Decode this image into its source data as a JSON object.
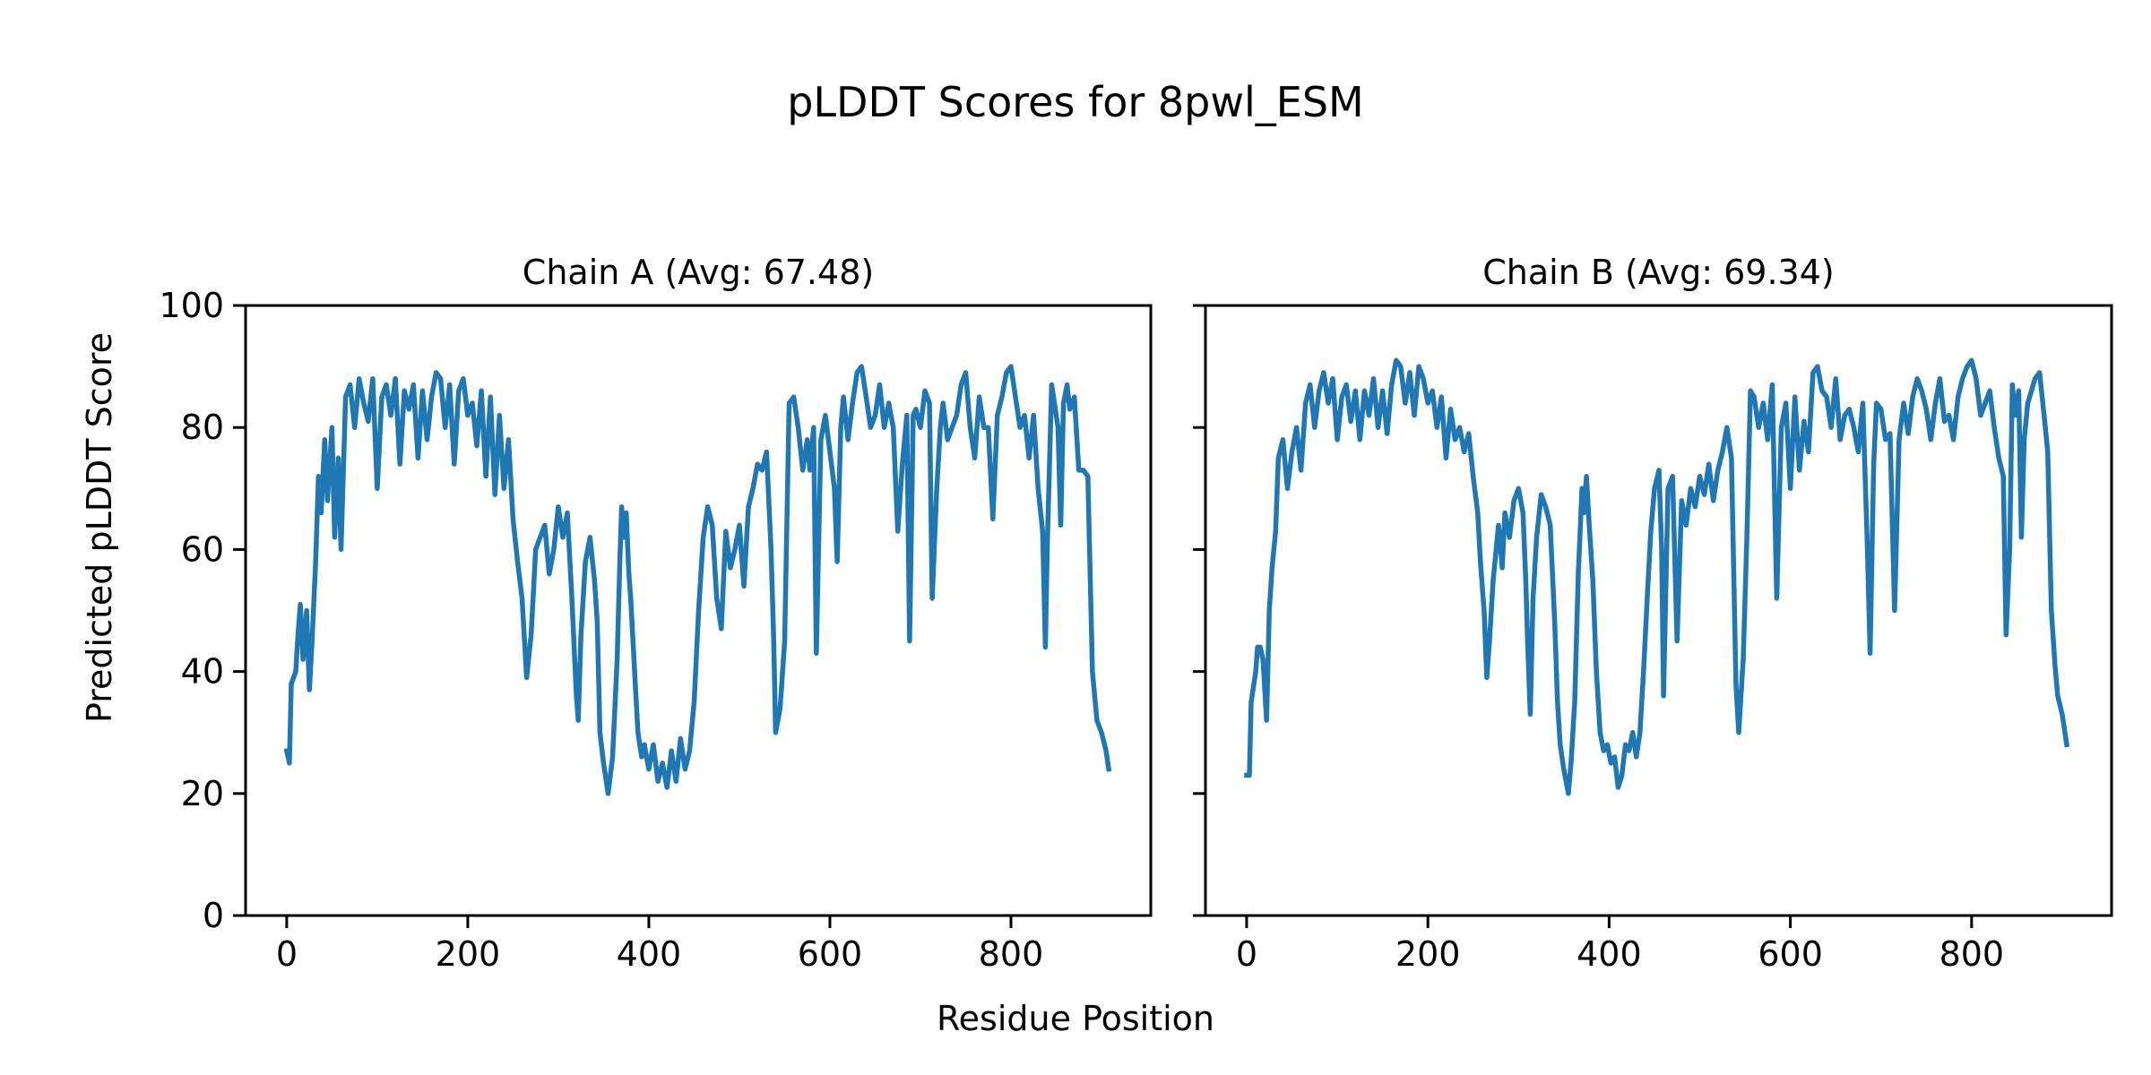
{
  "figure": {
    "title": "pLDDT Scores for 8pwl_ESM",
    "xlabel": "Residue Position",
    "ylabel": "Predicted pLDDT Score",
    "line_color": "#1f77b4"
  },
  "chart_data": [
    {
      "type": "line",
      "title": "Chain A (Avg: 67.48)",
      "xlabel": "Residue Position",
      "ylabel": "Predicted pLDDT Score",
      "xlim": [
        -45.45,
        954.45
      ],
      "ylim": [
        0,
        100
      ],
      "xticks": [
        0,
        200,
        400,
        600,
        800
      ],
      "yticks": [
        0,
        20,
        40,
        60,
        80,
        100
      ],
      "show_yticklabels": true,
      "grid": false,
      "x": [
        0,
        3,
        5,
        10,
        12,
        15,
        18,
        22,
        25,
        28,
        32,
        35,
        38,
        42,
        45,
        50,
        53,
        57,
        60,
        65,
        70,
        75,
        80,
        85,
        90,
        95,
        100,
        105,
        110,
        115,
        120,
        125,
        130,
        135,
        140,
        145,
        150,
        155,
        160,
        165,
        170,
        175,
        180,
        185,
        190,
        195,
        200,
        205,
        210,
        215,
        220,
        225,
        230,
        235,
        240,
        245,
        250,
        255,
        260,
        265,
        270,
        275,
        280,
        285,
        290,
        295,
        300,
        305,
        310,
        315,
        320,
        322,
        325,
        330,
        335,
        340,
        343,
        346,
        350,
        355,
        360,
        365,
        368,
        370,
        372,
        375,
        378,
        380,
        385,
        388,
        392,
        395,
        400,
        405,
        410,
        415,
        420,
        425,
        430,
        435,
        440,
        445,
        450,
        455,
        460,
        465,
        470,
        475,
        480,
        485,
        490,
        495,
        500,
        505,
        510,
        515,
        520,
        525,
        530,
        535,
        538,
        540,
        545,
        550,
        555,
        560,
        565,
        570,
        575,
        578,
        582,
        585,
        590,
        595,
        600,
        605,
        608,
        612,
        615,
        620,
        625,
        630,
        635,
        640,
        645,
        650,
        655,
        660,
        665,
        670,
        675,
        680,
        685,
        688,
        692,
        695,
        700,
        705,
        710,
        713,
        718,
        722,
        725,
        730,
        735,
        740,
        745,
        750,
        755,
        760,
        765,
        770,
        775,
        780,
        785,
        790,
        795,
        800,
        805,
        810,
        815,
        820,
        825,
        830,
        835,
        838,
        840,
        845,
        848,
        852,
        855,
        858,
        862,
        865,
        870,
        875,
        880,
        885,
        890,
        895,
        900,
        905,
        908
      ],
      "y": [
        27,
        25,
        38,
        40,
        45,
        51,
        42,
        50,
        37,
        45,
        58,
        72,
        66,
        78,
        68,
        80,
        62,
        75,
        60,
        85,
        87,
        80,
        88,
        84,
        81,
        88,
        70,
        85,
        87,
        82,
        88,
        74,
        86,
        83,
        87,
        75,
        86,
        78,
        85,
        89,
        88,
        80,
        87,
        74,
        86,
        88,
        82,
        84,
        77,
        86,
        72,
        85,
        69,
        82,
        70,
        78,
        65,
        58,
        52,
        39,
        46,
        60,
        62,
        64,
        56,
        60,
        67,
        62,
        66,
        52,
        36,
        32,
        46,
        58,
        62,
        55,
        48,
        30,
        25,
        20,
        26,
        42,
        58,
        67,
        62,
        66,
        56,
        52,
        38,
        30,
        26,
        28,
        24,
        28,
        22,
        25,
        21,
        27,
        22,
        29,
        24,
        27,
        35,
        50,
        62,
        67,
        64,
        52,
        47,
        63,
        57,
        60,
        64,
        54,
        67,
        70,
        74,
        73,
        76,
        60,
        45,
        30,
        34,
        45,
        84,
        85,
        80,
        73,
        78,
        73,
        80,
        43,
        78,
        82,
        76,
        70,
        58,
        80,
        85,
        78,
        84,
        89,
        90,
        85,
        80,
        82,
        87,
        80,
        84,
        80,
        63,
        74,
        82,
        45,
        82,
        83,
        80,
        86,
        84,
        52,
        70,
        80,
        84,
        78,
        80,
        82,
        87,
        89,
        80,
        75,
        85,
        80,
        80,
        65,
        82,
        85,
        89,
        90,
        85,
        80,
        82,
        75,
        82,
        70,
        63,
        44,
        60,
        87,
        84,
        80,
        64,
        84,
        87,
        83,
        85,
        73,
        73,
        72,
        40,
        32,
        30,
        27,
        24
      ]
    },
    {
      "type": "line",
      "title": "Chain B (Avg: 69.34)",
      "xlabel": "Residue Position",
      "ylabel": "Predicted pLDDT Score",
      "xlim": [
        -45.45,
        954.45
      ],
      "ylim": [
        0,
        100
      ],
      "xticks": [
        0,
        200,
        400,
        600,
        800
      ],
      "yticks": [
        0,
        20,
        40,
        60,
        80,
        100
      ],
      "show_yticklabels": false,
      "grid": false,
      "x": [
        0,
        3,
        5,
        10,
        12,
        15,
        18,
        22,
        25,
        28,
        32,
        35,
        40,
        45,
        50,
        55,
        60,
        65,
        70,
        75,
        80,
        85,
        90,
        95,
        100,
        105,
        110,
        115,
        120,
        125,
        130,
        135,
        140,
        145,
        150,
        155,
        160,
        165,
        170,
        175,
        180,
        185,
        190,
        195,
        200,
        205,
        210,
        215,
        220,
        225,
        230,
        235,
        240,
        245,
        250,
        255,
        258,
        262,
        265,
        268,
        272,
        278,
        282,
        285,
        290,
        295,
        300,
        305,
        308,
        310,
        313,
        316,
        320,
        325,
        330,
        335,
        340,
        343,
        346,
        350,
        355,
        358,
        362,
        366,
        370,
        372,
        375,
        378,
        382,
        386,
        390,
        394,
        398,
        402,
        406,
        410,
        414,
        418,
        422,
        426,
        430,
        434,
        438,
        442,
        446,
        450,
        455,
        458,
        460,
        465,
        470,
        475,
        480,
        485,
        490,
        495,
        500,
        505,
        510,
        515,
        520,
        525,
        530,
        535,
        540,
        543,
        548,
        552,
        556,
        560,
        565,
        570,
        575,
        580,
        585,
        590,
        595,
        600,
        605,
        610,
        615,
        620,
        625,
        630,
        635,
        640,
        645,
        650,
        655,
        660,
        665,
        670,
        675,
        680,
        685,
        688,
        692,
        695,
        700,
        705,
        710,
        715,
        720,
        725,
        730,
        735,
        740,
        745,
        750,
        755,
        760,
        765,
        770,
        775,
        780,
        785,
        790,
        795,
        800,
        805,
        810,
        815,
        820,
        825,
        830,
        835,
        838,
        842,
        845,
        848,
        852,
        855,
        858,
        862,
        866,
        870,
        875,
        880,
        884,
        888,
        892,
        895,
        900,
        905
      ],
      "y": [
        23,
        23,
        35,
        40,
        44,
        44,
        42,
        32,
        50,
        57,
        63,
        75,
        78,
        70,
        76,
        80,
        73,
        84,
        87,
        80,
        86,
        89,
        84,
        88,
        78,
        85,
        87,
        81,
        86,
        78,
        86,
        82,
        88,
        80,
        86,
        79,
        87,
        91,
        90,
        84,
        89,
        82,
        90,
        88,
        84,
        86,
        80,
        85,
        75,
        83,
        78,
        80,
        76,
        79,
        72,
        66,
        58,
        50,
        39,
        45,
        55,
        64,
        57,
        66,
        62,
        68,
        70,
        66,
        55,
        45,
        33,
        52,
        62,
        69,
        67,
        64,
        48,
        35,
        28,
        24,
        20,
        25,
        35,
        56,
        70,
        66,
        72,
        64,
        55,
        40,
        30,
        27,
        28,
        25,
        26,
        21,
        23,
        28,
        27,
        30,
        26,
        30,
        40,
        52,
        63,
        70,
        73,
        60,
        36,
        70,
        72,
        45,
        68,
        64,
        70,
        67,
        72,
        69,
        74,
        68,
        73,
        76,
        80,
        75,
        38,
        30,
        42,
        62,
        86,
        85,
        80,
        84,
        78,
        87,
        52,
        80,
        84,
        70,
        85,
        73,
        81,
        76,
        89,
        90,
        86,
        85,
        80,
        88,
        78,
        82,
        83,
        80,
        76,
        84,
        60,
        43,
        74,
        84,
        83,
        78,
        79,
        50,
        78,
        84,
        79,
        85,
        88,
        86,
        83,
        78,
        84,
        88,
        81,
        82,
        78,
        85,
        88,
        90,
        91,
        88,
        82,
        84,
        86,
        80,
        75,
        72,
        46,
        60,
        87,
        82,
        86,
        62,
        78,
        84,
        86,
        88,
        89,
        82,
        76,
        50,
        41,
        36,
        33,
        28
      ]
    }
  ]
}
